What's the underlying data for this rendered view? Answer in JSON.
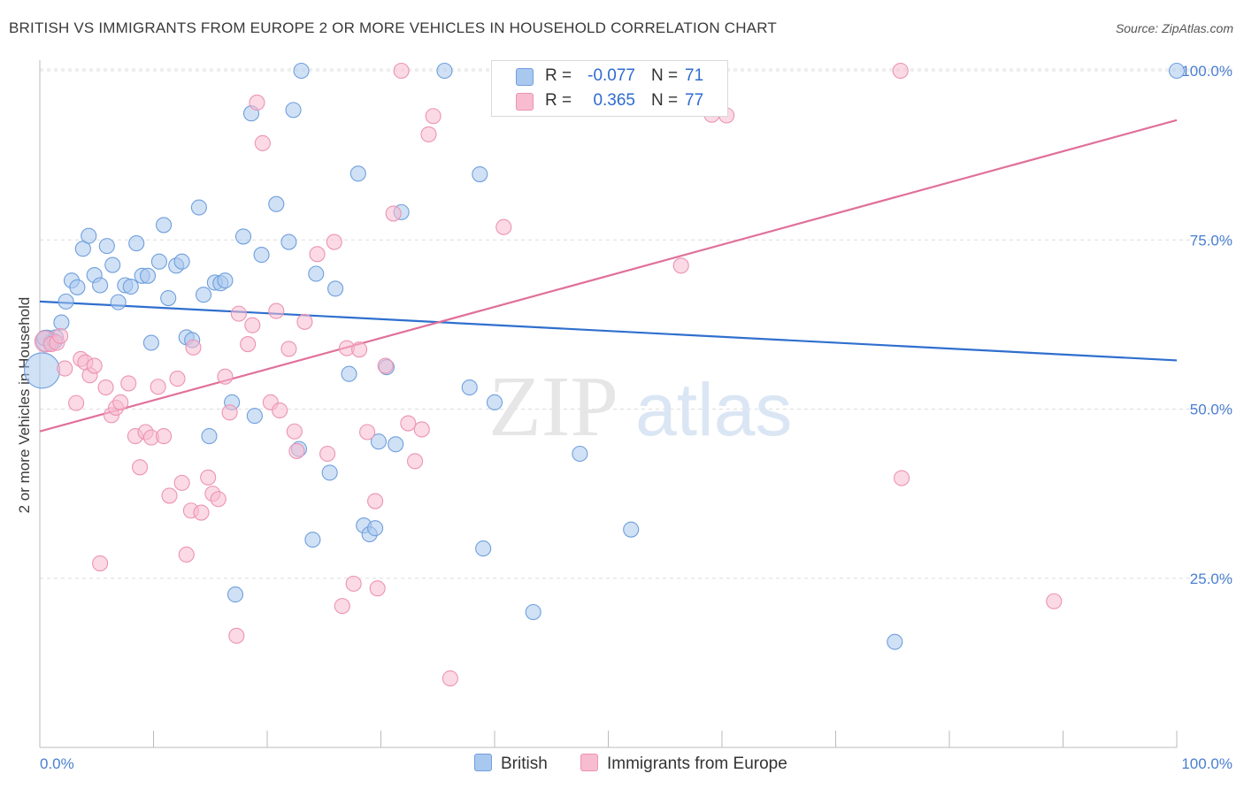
{
  "title": "BRITISH VS IMMIGRANTS FROM EUROPE 2 OR MORE VEHICLES IN HOUSEHOLD CORRELATION CHART",
  "source": "Source: ZipAtlas.com",
  "watermark": {
    "zip": "ZIP",
    "atlas": "atlas"
  },
  "legend": {
    "british": {
      "r_label": "R =",
      "r_value": "-0.077",
      "n_label": "N =",
      "n_value": "71"
    },
    "immigrants": {
      "r_label": "R =",
      "r_value": "0.365",
      "n_label": "N =",
      "n_value": "77"
    }
  },
  "bottom_legend": {
    "british": "British",
    "immigrants": "Immigrants from Europe"
  },
  "colors": {
    "british_fill": "#a9c8ef",
    "british_stroke": "#6f9fdc",
    "british_line": "#2f6fce",
    "immigrants_fill": "#f7bcd0",
    "immigrants_stroke": "#ec93b3",
    "immigrants_line": "#e0709a",
    "tick_text": "#4a7fd0",
    "grid": "#dddddd"
  },
  "chart_data": {
    "type": "scatter",
    "title": "BRITISH VS IMMIGRANTS FROM EUROPE 2 OR MORE VEHICLES IN HOUSEHOLD CORRELATION CHART",
    "xlabel": "",
    "ylabel": "2 or more Vehicles in Household",
    "xlim": [
      0,
      100
    ],
    "ylim": [
      0,
      102
    ],
    "x_tick_labels": [
      "0.0%",
      "100.0%"
    ],
    "y_ticks": [
      25,
      50,
      75,
      100
    ],
    "y_tick_labels": [
      "25.0%",
      "50.0%",
      "75.0%",
      "100.0%"
    ],
    "grid": true,
    "legend_position": "top-center",
    "series": [
      {
        "name": "British",
        "r": -0.077,
        "n": 71,
        "trend": [
          [
            0,
            65.9
          ],
          [
            100,
            57.2
          ]
        ],
        "points": [
          [
            0.2,
            55.7,
            "L"
          ],
          [
            0.6,
            60.1,
            "M"
          ],
          [
            1.0,
            59.9,
            "S"
          ],
          [
            1.4,
            60.6,
            "S"
          ],
          [
            1.9,
            62.8,
            "S"
          ],
          [
            2.3,
            65.9,
            "S"
          ],
          [
            2.8,
            69.0,
            "S"
          ],
          [
            3.3,
            68.0,
            "S"
          ],
          [
            3.8,
            73.7,
            "S"
          ],
          [
            4.3,
            75.6,
            "S"
          ],
          [
            4.8,
            69.8,
            "S"
          ],
          [
            5.3,
            68.3,
            "S"
          ],
          [
            5.9,
            74.1,
            "S"
          ],
          [
            6.4,
            71.3,
            "S"
          ],
          [
            6.9,
            65.8,
            "S"
          ],
          [
            7.5,
            68.3,
            "S"
          ],
          [
            8.0,
            68.1,
            "S"
          ],
          [
            8.5,
            74.5,
            "S"
          ],
          [
            9.0,
            69.7,
            "S"
          ],
          [
            9.5,
            69.7,
            "S"
          ],
          [
            9.8,
            59.8,
            "S"
          ],
          [
            10.5,
            71.8,
            "S"
          ],
          [
            10.9,
            77.2,
            "S"
          ],
          [
            11.3,
            66.4,
            "S"
          ],
          [
            12.0,
            71.2,
            "S"
          ],
          [
            12.5,
            71.8,
            "S"
          ],
          [
            12.9,
            60.6,
            "S"
          ],
          [
            13.4,
            60.2,
            "S"
          ],
          [
            14.0,
            79.8,
            "S"
          ],
          [
            14.4,
            66.9,
            "S"
          ],
          [
            14.9,
            46.0,
            "S"
          ],
          [
            15.4,
            68.7,
            "S"
          ],
          [
            15.9,
            68.6,
            "S"
          ],
          [
            16.3,
            69.0,
            "S"
          ],
          [
            16.9,
            51.0,
            "S"
          ],
          [
            17.2,
            22.6,
            "S"
          ],
          [
            17.9,
            75.5,
            "S"
          ],
          [
            18.6,
            93.7,
            "S"
          ],
          [
            18.9,
            49.0,
            "S"
          ],
          [
            19.5,
            72.8,
            "S"
          ],
          [
            20.8,
            80.3,
            "S"
          ],
          [
            21.9,
            74.7,
            "S"
          ],
          [
            22.3,
            94.2,
            "S"
          ],
          [
            22.8,
            44.1,
            "S"
          ],
          [
            23.0,
            100.0,
            "S"
          ],
          [
            24.0,
            30.7,
            "S"
          ],
          [
            24.3,
            70.0,
            "S"
          ],
          [
            25.5,
            40.6,
            "S"
          ],
          [
            26.0,
            67.8,
            "S"
          ],
          [
            27.2,
            55.2,
            "S"
          ],
          [
            28.0,
            84.8,
            "S"
          ],
          [
            28.5,
            32.8,
            "S"
          ],
          [
            29.0,
            31.5,
            "S"
          ],
          [
            29.5,
            32.4,
            "S"
          ],
          [
            29.8,
            45.2,
            "S"
          ],
          [
            30.5,
            56.2,
            "S"
          ],
          [
            31.3,
            44.8,
            "S"
          ],
          [
            31.8,
            79.1,
            "S"
          ],
          [
            35.6,
            100.0,
            "S"
          ],
          [
            37.8,
            53.2,
            "S"
          ],
          [
            38.7,
            84.7,
            "S"
          ],
          [
            39.0,
            29.4,
            "S"
          ],
          [
            40.0,
            51.0,
            "S"
          ],
          [
            43.4,
            20.0,
            "S"
          ],
          [
            47.5,
            43.4,
            "S"
          ],
          [
            52.0,
            32.2,
            "S"
          ],
          [
            55.0,
            100.0,
            "S"
          ],
          [
            75.2,
            15.6,
            "S"
          ],
          [
            100.0,
            100.0,
            "S"
          ],
          [
            0.4,
            60.5,
            "S"
          ],
          [
            1.3,
            60.0,
            "S"
          ]
        ]
      },
      {
        "name": "Immigrants from Europe",
        "r": 0.365,
        "n": 77,
        "trend": [
          [
            0,
            46.7
          ],
          [
            100,
            92.7
          ]
        ],
        "points": [
          [
            0.5,
            60.0,
            "M"
          ],
          [
            1.0,
            59.6,
            "S"
          ],
          [
            1.5,
            59.8,
            "S"
          ],
          [
            1.8,
            60.8,
            "S"
          ],
          [
            2.2,
            56.0,
            "S"
          ],
          [
            3.2,
            50.9,
            "S"
          ],
          [
            3.6,
            57.4,
            "S"
          ],
          [
            4.0,
            56.9,
            "S"
          ],
          [
            4.4,
            55.0,
            "S"
          ],
          [
            4.8,
            56.4,
            "S"
          ],
          [
            5.3,
            27.2,
            "S"
          ],
          [
            5.8,
            53.2,
            "S"
          ],
          [
            6.3,
            49.1,
            "S"
          ],
          [
            6.7,
            50.2,
            "S"
          ],
          [
            7.1,
            51.0,
            "S"
          ],
          [
            7.8,
            53.8,
            "S"
          ],
          [
            8.4,
            46.0,
            "S"
          ],
          [
            8.8,
            41.4,
            "S"
          ],
          [
            9.3,
            46.6,
            "S"
          ],
          [
            9.8,
            45.8,
            "S"
          ],
          [
            10.4,
            53.3,
            "S"
          ],
          [
            10.9,
            46.0,
            "S"
          ],
          [
            11.4,
            37.2,
            "S"
          ],
          [
            12.1,
            54.5,
            "S"
          ],
          [
            12.5,
            39.1,
            "S"
          ],
          [
            12.9,
            28.5,
            "S"
          ],
          [
            13.3,
            35.0,
            "S"
          ],
          [
            13.5,
            59.1,
            "S"
          ],
          [
            14.2,
            34.7,
            "S"
          ],
          [
            14.8,
            39.9,
            "S"
          ],
          [
            15.2,
            37.5,
            "S"
          ],
          [
            15.7,
            36.7,
            "S"
          ],
          [
            16.3,
            54.8,
            "S"
          ],
          [
            16.7,
            49.5,
            "S"
          ],
          [
            17.3,
            16.5,
            "S"
          ],
          [
            17.5,
            64.1,
            "S"
          ],
          [
            18.3,
            59.6,
            "S"
          ],
          [
            18.7,
            62.4,
            "S"
          ],
          [
            19.1,
            95.3,
            "S"
          ],
          [
            19.6,
            89.3,
            "S"
          ],
          [
            20.3,
            51.0,
            "S"
          ],
          [
            20.8,
            64.5,
            "S"
          ],
          [
            21.1,
            49.8,
            "S"
          ],
          [
            21.9,
            58.9,
            "S"
          ],
          [
            22.4,
            46.7,
            "S"
          ],
          [
            22.6,
            43.8,
            "S"
          ],
          [
            23.3,
            62.9,
            "S"
          ],
          [
            24.4,
            72.9,
            "S"
          ],
          [
            25.3,
            43.4,
            "S"
          ],
          [
            25.9,
            74.7,
            "S"
          ],
          [
            26.6,
            20.9,
            "S"
          ],
          [
            27.0,
            59.0,
            "S"
          ],
          [
            27.6,
            24.2,
            "S"
          ],
          [
            28.1,
            58.8,
            "S"
          ],
          [
            28.8,
            46.6,
            "S"
          ],
          [
            29.5,
            36.4,
            "S"
          ],
          [
            29.7,
            23.5,
            "S"
          ],
          [
            30.4,
            56.4,
            "S"
          ],
          [
            31.1,
            78.9,
            "S"
          ],
          [
            31.8,
            100.0,
            "S"
          ],
          [
            32.4,
            47.9,
            "S"
          ],
          [
            33.0,
            42.3,
            "S"
          ],
          [
            33.6,
            47.0,
            "S"
          ],
          [
            34.2,
            90.6,
            "S"
          ],
          [
            34.6,
            93.3,
            "S"
          ],
          [
            36.1,
            10.2,
            "S"
          ],
          [
            40.6,
            100.0,
            "S"
          ],
          [
            40.8,
            76.9,
            "S"
          ],
          [
            47.0,
            100.0,
            "S"
          ],
          [
            49.0,
            100.0,
            "S"
          ],
          [
            50.5,
            100.0,
            "S"
          ],
          [
            56.4,
            71.2,
            "S"
          ],
          [
            75.8,
            39.8,
            "S"
          ],
          [
            59.1,
            93.5,
            "S"
          ],
          [
            60.4,
            93.4,
            "S"
          ],
          [
            75.7,
            100.0,
            "S"
          ],
          [
            89.2,
            21.6,
            "S"
          ]
        ]
      }
    ]
  }
}
